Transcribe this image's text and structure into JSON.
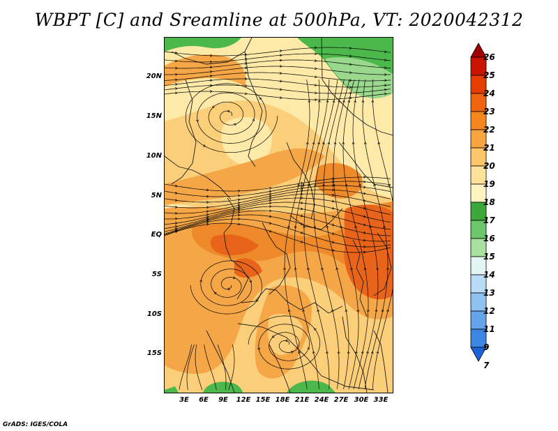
{
  "title": "WBPT [C] and Sreamline at 500hPa, VT: 2020042312",
  "footer": "GrADS: IGES/COLA",
  "lat_labels": [
    "20N",
    "15N",
    "10N",
    "5N",
    "EQ",
    "5S",
    "10S",
    "15S"
  ],
  "lon_labels": [
    "3E",
    "6E",
    "9E",
    "12E",
    "15E",
    "18E",
    "21E",
    "24E",
    "27E",
    "30E",
    "33E"
  ],
  "colorbar": {
    "labels": [
      "26",
      "25",
      "24",
      "23",
      "22",
      "21",
      "20",
      "19",
      "18",
      "17",
      "16",
      "15",
      "14",
      "13",
      "12",
      "11",
      "9",
      "7"
    ],
    "colors": [
      "#a00000",
      "#c81400",
      "#e63c00",
      "#f06410",
      "#f5871e",
      "#f8a540",
      "#fcc66a",
      "#fde39a",
      "#fff4c0",
      "#3ca83c",
      "#6cc66c",
      "#a8e2a0",
      "#e4f6f4",
      "#b8dcf6",
      "#8ec2f0",
      "#64a4ea",
      "#3a86e2",
      "#1a64d8"
    ]
  },
  "field_colors": {
    "green": "#4cb84c",
    "light_green": "#9ad88e",
    "pale": "#fde9a8",
    "light_orange": "#fbcf7a",
    "orange": "#f5a646",
    "dark_orange": "#ef8a2a",
    "red_orange": "#e8641a"
  }
}
